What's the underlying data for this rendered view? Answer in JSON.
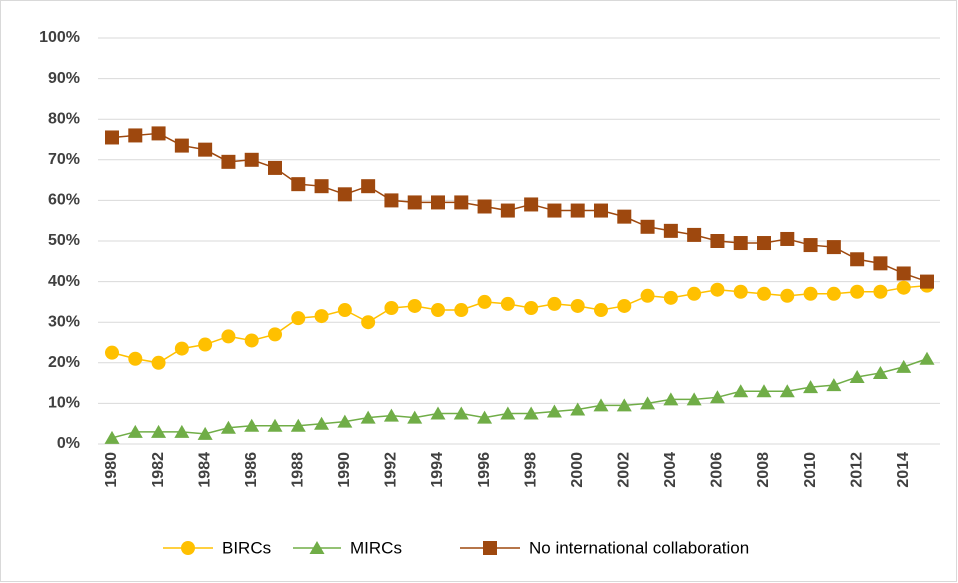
{
  "chart_data": {
    "type": "line",
    "x": [
      1980,
      1981,
      1982,
      1983,
      1984,
      1985,
      1986,
      1987,
      1988,
      1989,
      1990,
      1991,
      1992,
      1993,
      1994,
      1995,
      1996,
      1997,
      1998,
      1999,
      2000,
      2001,
      2002,
      2003,
      2004,
      2005,
      2006,
      2007,
      2008,
      2009,
      2010,
      2011,
      2012,
      2013,
      2014,
      2015
    ],
    "xlim": [
      1980,
      2015
    ],
    "xticks": [
      1980,
      1982,
      1984,
      1986,
      1988,
      1990,
      1992,
      1994,
      1996,
      1998,
      2000,
      2002,
      2004,
      2006,
      2008,
      2010,
      2012,
      2014
    ],
    "ylim": [
      0,
      100
    ],
    "yticks": [
      {
        "value": 0,
        "label": "0%"
      },
      {
        "value": 10,
        "label": "10%"
      },
      {
        "value": 20,
        "label": "20%"
      },
      {
        "value": 30,
        "label": "30%"
      },
      {
        "value": 40,
        "label": "40%"
      },
      {
        "value": 50,
        "label": "50%"
      },
      {
        "value": 60,
        "label": "60%"
      },
      {
        "value": 70,
        "label": "70%"
      },
      {
        "value": 80,
        "label": "80%"
      },
      {
        "value": 90,
        "label": "90%"
      },
      {
        "value": 100,
        "label": "100%"
      }
    ],
    "grid": true,
    "legend": "bottom",
    "series": [
      {
        "name": "BIRCs",
        "color": "#ffc000",
        "marker": "circle",
        "values": [
          22.5,
          21,
          20,
          23.5,
          24.5,
          26.5,
          25.5,
          27,
          31,
          31.5,
          33,
          30,
          33.5,
          34,
          33,
          33,
          35,
          34.5,
          33.5,
          34.5,
          34,
          33,
          34,
          36.5,
          36,
          37,
          38,
          37.5,
          37,
          36.5,
          37,
          37,
          37.5,
          37.5,
          38.5,
          39
        ]
      },
      {
        "name": "MIRCs",
        "color": "#70ad47",
        "marker": "triangle",
        "values": [
          1.5,
          3,
          3,
          3,
          2.5,
          4,
          4.5,
          4.5,
          4.5,
          5,
          5.5,
          6.5,
          7,
          6.5,
          7.5,
          7.5,
          6.5,
          7.5,
          7.5,
          8,
          8.5,
          9.5,
          9.5,
          10,
          11,
          11,
          11.5,
          13,
          13,
          13,
          14,
          14.5,
          16.5,
          17.5,
          19,
          21
        ]
      },
      {
        "name": "No international collaboration",
        "color": "#9e480e",
        "marker": "square",
        "values": [
          75.5,
          76,
          76.5,
          73.5,
          72.5,
          69.5,
          70,
          68,
          64,
          63.5,
          61.5,
          63.5,
          60,
          59.5,
          59.5,
          59.5,
          58.5,
          57.5,
          59,
          57.5,
          57.5,
          57.5,
          56,
          53.5,
          52.5,
          51.5,
          50,
          49.5,
          49.5,
          50.5,
          49,
          48.5,
          45.5,
          44.5,
          42,
          40
        ]
      }
    ]
  }
}
